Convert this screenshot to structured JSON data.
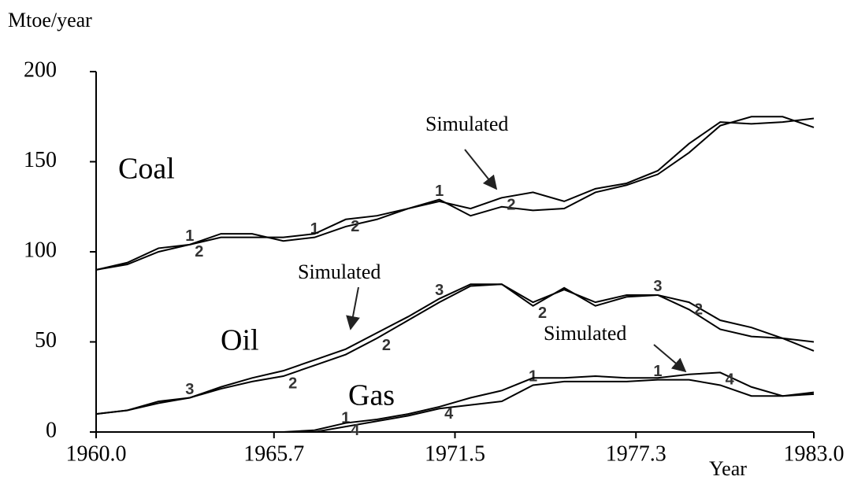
{
  "chart_data": {
    "type": "line",
    "y_label": "Mtoe/year",
    "x_label": "Year",
    "annotations": [
      "Simulated",
      "Simulated",
      "Simulated",
      "Coal",
      "Oil",
      "Gas"
    ],
    "x": [
      1960,
      1961,
      1962,
      1963,
      1964,
      1965,
      1966,
      1967,
      1968,
      1969,
      1970,
      1971,
      1972,
      1973,
      1974,
      1975,
      1976,
      1977,
      1978,
      1979,
      1980,
      1981,
      1982,
      1983
    ],
    "series": [
      {
        "name": "1",
        "color": "#000000",
        "values": [
          90,
          93,
          100,
          104,
          110,
          110,
          106,
          108,
          114,
          118,
          124,
          129,
          120,
          125,
          123,
          124,
          133,
          137,
          143,
          155,
          170,
          175,
          175,
          169
        ]
      },
      {
        "name": "2",
        "color": "#000000",
        "values": [
          90,
          94,
          102,
          104,
          108,
          108,
          108,
          110,
          118,
          120,
          124,
          128,
          124,
          130,
          133,
          128,
          135,
          138,
          145,
          160,
          172,
          171,
          172,
          174
        ]
      },
      {
        "name": "3",
        "color": "#000000",
        "values": [
          10,
          12,
          16,
          19,
          25,
          30,
          34,
          40,
          46,
          55,
          64,
          74,
          82,
          82,
          72,
          79,
          72,
          76,
          76,
          68,
          57,
          53,
          52,
          50
        ]
      },
      {
        "name": "2",
        "color": "#000000",
        "values": [
          10,
          12,
          17,
          19,
          24,
          28,
          31,
          37,
          43,
          52,
          62,
          72,
          81,
          82,
          70,
          80,
          70,
          75,
          76,
          72,
          62,
          58,
          52,
          45
        ]
      },
      {
        "name": "1",
        "color": "#000000",
        "values": [
          null,
          null,
          null,
          0,
          0,
          0,
          0,
          0,
          3,
          6,
          9,
          13,
          15,
          17,
          26,
          28,
          28,
          28,
          29,
          29,
          26,
          20,
          20,
          21
        ]
      },
      {
        "name": "4",
        "color": "#000000",
        "values": [
          null,
          null,
          null,
          0,
          0,
          0,
          0,
          1,
          5,
          7,
          10,
          14,
          19,
          23,
          30,
          30,
          31,
          30,
          30,
          32,
          33,
          25,
          20,
          22
        ]
      }
    ],
    "xlim": [
      1960,
      1983
    ],
    "xticks": [
      {
        "value": 1960,
        "label": "1960.0"
      },
      1965.7,
      1971.5,
      1977.3,
      {
        "value": 1983,
        "label": "1983.0"
      }
    ],
    "ylim": [
      0,
      200
    ],
    "yticks": [
      0,
      50,
      100,
      150,
      200
    ],
    "grid": false
  }
}
